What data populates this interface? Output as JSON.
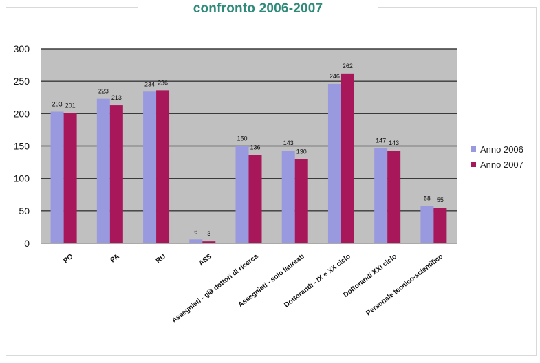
{
  "chart_data": {
    "type": "bar",
    "title": "confronto 2006-2007",
    "categories": [
      "PO",
      "PA",
      "RU",
      "ASS",
      "Assegnisti - già dottori di ricerca",
      "Assegnisti - solo laureati",
      "Dottorandi - IX e XX ciclo",
      "Dottorandi XXI ciclo",
      "Personale tecnico-scientifico"
    ],
    "series": [
      {
        "name": "Anno 2006",
        "values": [
          203,
          223,
          234,
          6,
          150,
          143,
          246,
          147,
          58
        ],
        "labels": [
          "203",
          "223",
          "234",
          "6",
          "150",
          "143",
          "246",
          "147",
          "58"
        ],
        "color": "#9999e0"
      },
      {
        "name": "Anno 2007",
        "values": [
          201,
          213,
          236,
          3,
          136,
          130,
          262,
          143,
          55
        ],
        "labels": [
          "201",
          "213",
          "236",
          "3",
          "136",
          "130",
          "262",
          "143",
          "55"
        ],
        "color": "#a8175a"
      }
    ],
    "ylim": [
      0,
      300
    ],
    "yticks": [
      0,
      50,
      100,
      150,
      200,
      250,
      300
    ],
    "grid": true,
    "legend_position": "right",
    "plot_background": "#c0c0c0"
  }
}
